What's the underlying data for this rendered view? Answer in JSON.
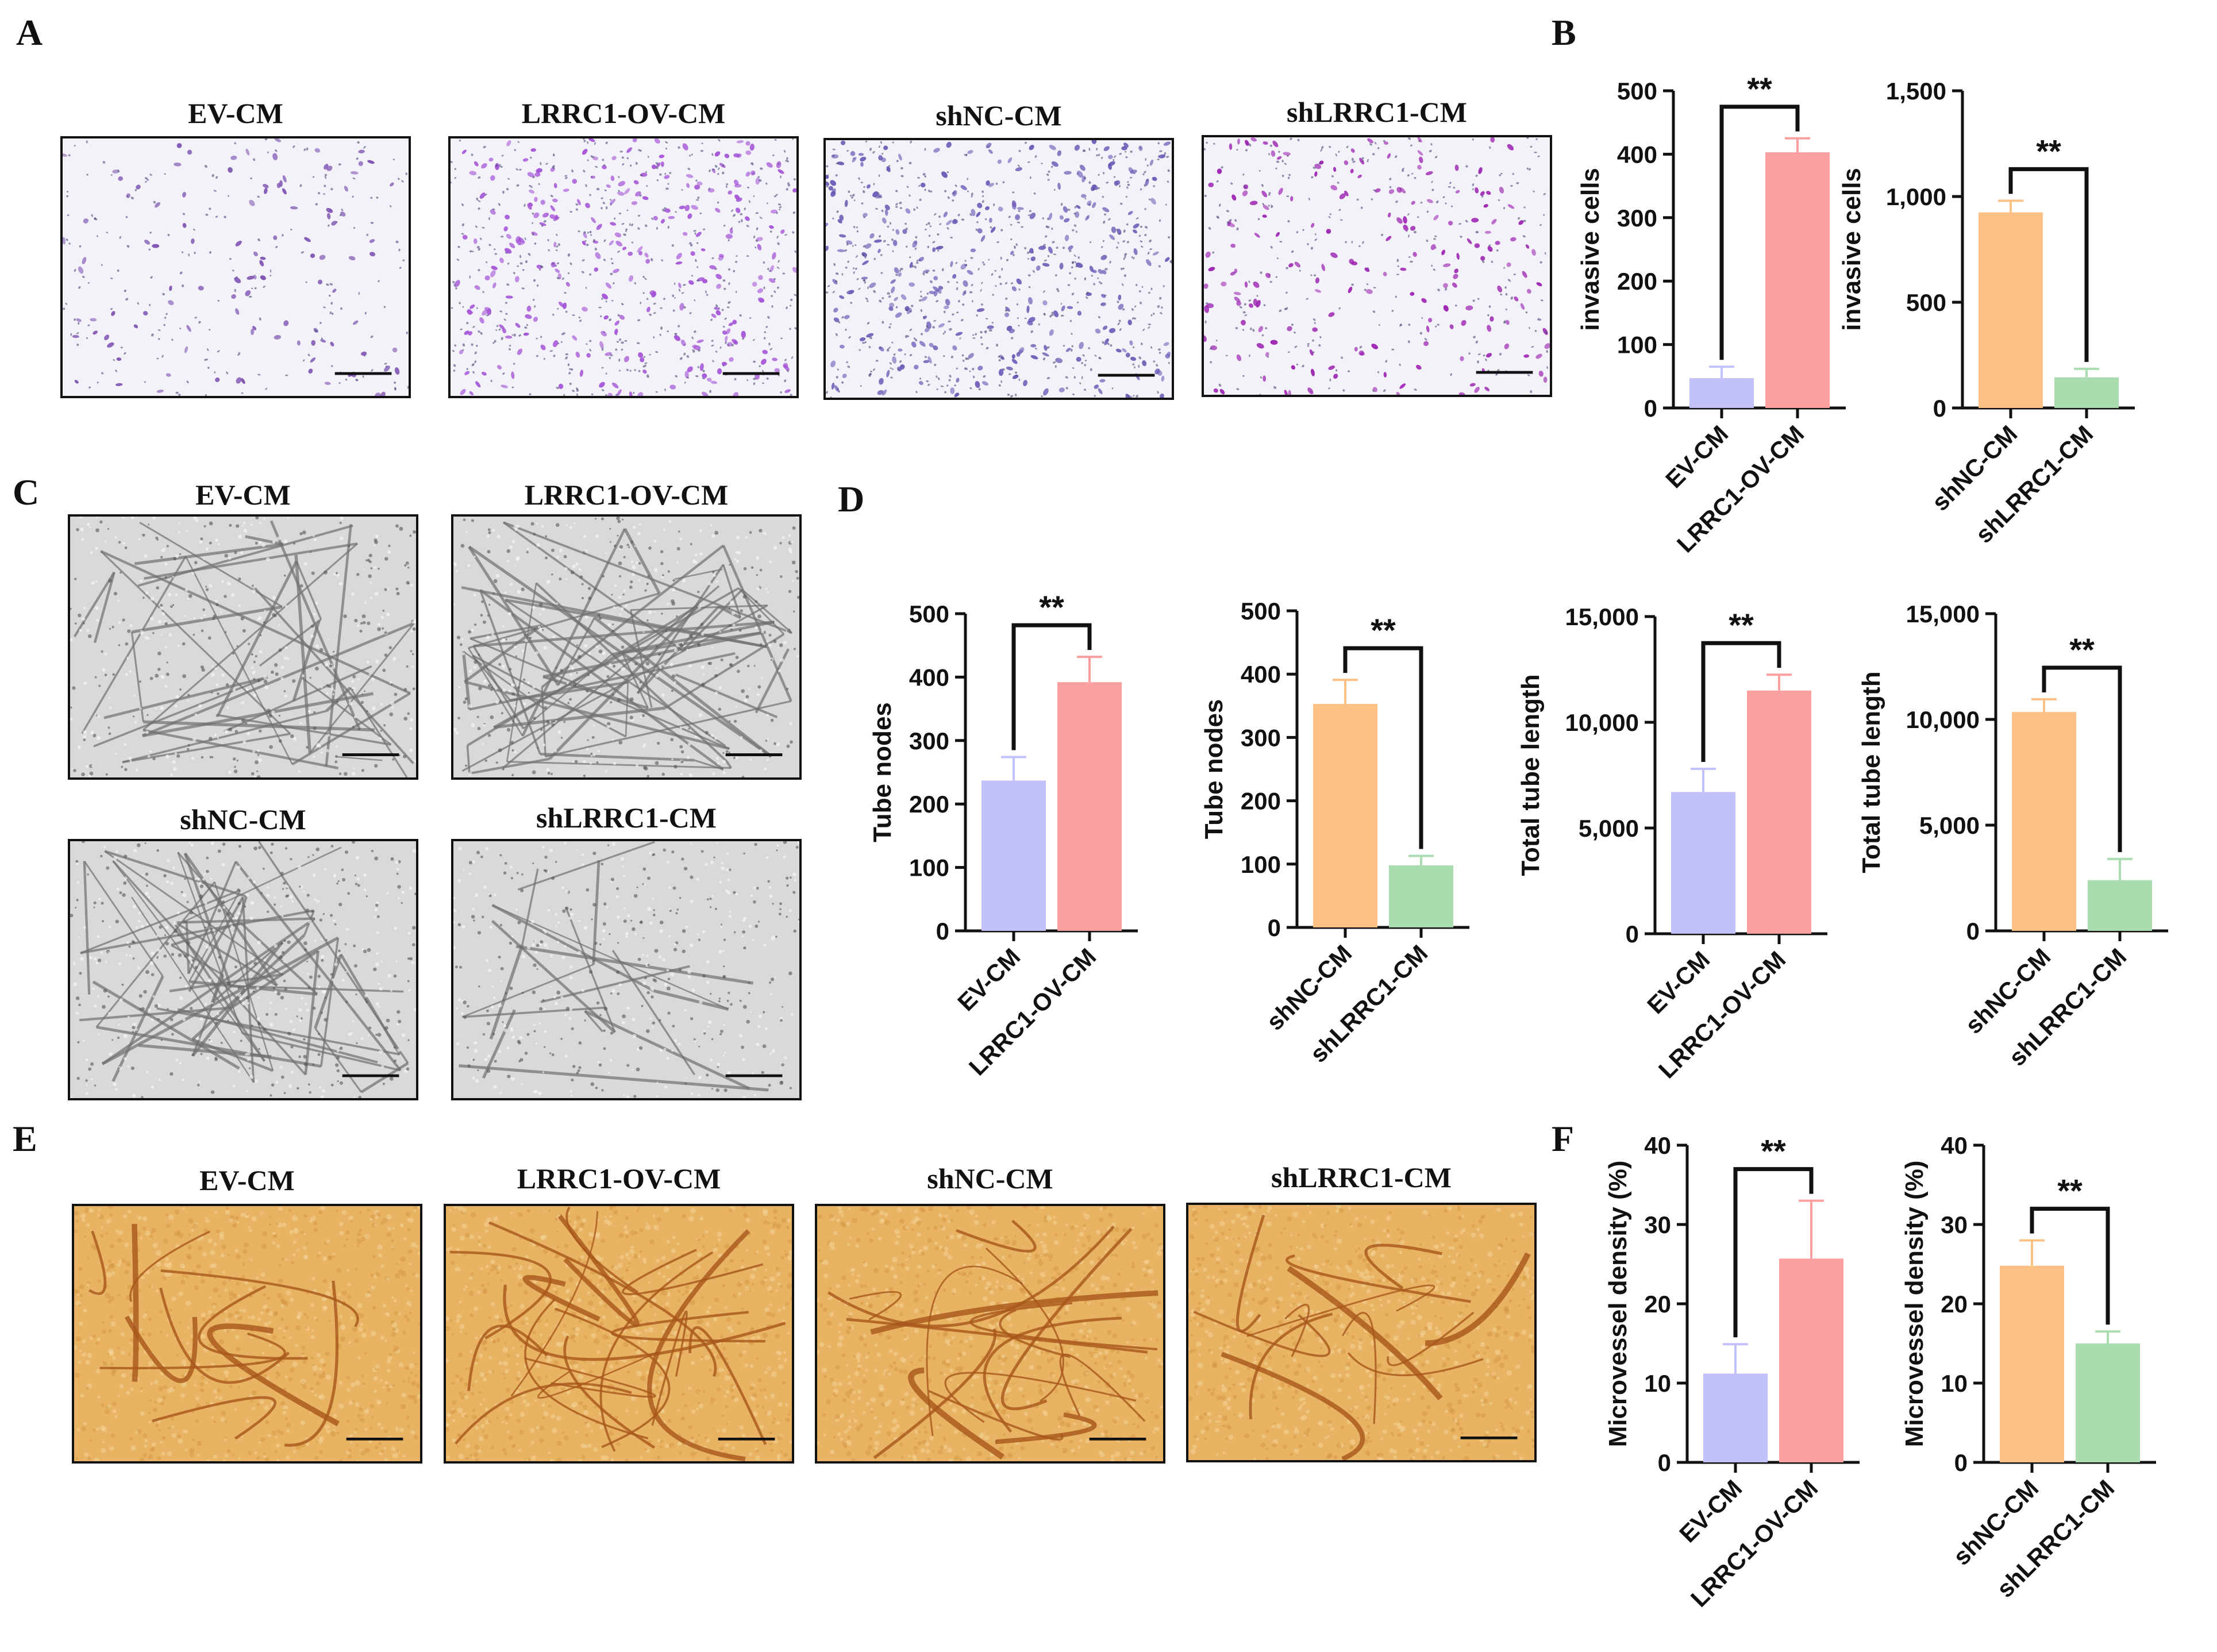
{
  "panels": {
    "A": {
      "letter": "A",
      "images": [
        {
          "title": "EV-CM",
          "kind": "transwell",
          "density": 0.35,
          "tint": "#7b4fb0"
        },
        {
          "title": "LRRC1-OV-CM",
          "kind": "transwell",
          "density": 0.9,
          "tint": "#a352d6"
        },
        {
          "title": "shNC-CM",
          "kind": "transwell",
          "density": 1.0,
          "tint": "#6a58b5"
        },
        {
          "title": "shLRRC1-CM",
          "kind": "transwell",
          "density": 0.55,
          "tint": "#9a1fb0"
        }
      ]
    },
    "B": {
      "letter": "B"
    },
    "C": {
      "letter": "C",
      "images": [
        {
          "title": "EV-CM",
          "kind": "tube",
          "density": 0.6
        },
        {
          "title": "LRRC1-OV-CM",
          "kind": "tube",
          "density": 1.0
        },
        {
          "title": "shNC-CM",
          "kind": "tube",
          "density": 0.8
        },
        {
          "title": "shLRRC1-CM",
          "kind": "tube",
          "density": 0.25
        }
      ]
    },
    "D": {
      "letter": "D"
    },
    "E": {
      "letter": "E",
      "images": [
        {
          "title": "EV-CM",
          "kind": "cam",
          "density": 0.35
        },
        {
          "title": "LRRC1-OV-CM",
          "kind": "cam",
          "density": 1.0
        },
        {
          "title": "shNC-CM",
          "kind": "cam",
          "density": 0.75
        },
        {
          "title": "shLRRC1-CM",
          "kind": "cam",
          "density": 0.5
        }
      ]
    },
    "F": {
      "letter": "F"
    }
  },
  "colors": {
    "EV-CM": "#c3c1fa",
    "LRRC1-OV-CM": "#fb9fa0",
    "shNC-CM": "#fdc085",
    "shLRRC1-CM": "#a9ddb0",
    "axis": "#111111"
  },
  "chart_data": [
    {
      "id": "B1",
      "type": "bar",
      "ylabel": "invasive cells",
      "categories": [
        "EV-CM",
        "LRRC1-OV-CM"
      ],
      "values": [
        47,
        403
      ],
      "errors": [
        18,
        22
      ],
      "ylim": [
        0,
        500
      ],
      "ticks": [
        "0",
        "100",
        "200",
        "300",
        "400",
        "500"
      ],
      "significance": "**"
    },
    {
      "id": "B2",
      "type": "bar",
      "ylabel": "invasive cells",
      "categories": [
        "shNC-CM",
        "shLRRC1-CM"
      ],
      "values": [
        925,
        145
      ],
      "errors": [
        55,
        40
      ],
      "ylim": [
        0,
        1500
      ],
      "ticks": [
        "0",
        "500",
        "1,000",
        "1,500"
      ],
      "significance": "**"
    },
    {
      "id": "D1",
      "type": "bar",
      "ylabel": "Tube nodes",
      "categories": [
        "EV-CM",
        "LRRC1-OV-CM"
      ],
      "values": [
        237,
        392
      ],
      "errors": [
        37,
        40
      ],
      "ylim": [
        0,
        500
      ],
      "ticks": [
        "0",
        "100",
        "200",
        "300",
        "400",
        "500"
      ],
      "significance": "**"
    },
    {
      "id": "D2",
      "type": "bar",
      "ylabel": "Tube nodes",
      "categories": [
        "shNC-CM",
        "shLRRC1-CM"
      ],
      "values": [
        353,
        98
      ],
      "errors": [
        38,
        15
      ],
      "ylim": [
        0,
        500
      ],
      "ticks": [
        "0",
        "100",
        "200",
        "300",
        "400",
        "500"
      ],
      "significance": "**"
    },
    {
      "id": "D3",
      "type": "bar",
      "ylabel": "Total tube length",
      "categories": [
        "EV-CM",
        "LRRC1-OV-CM"
      ],
      "values": [
        6700,
        11500
      ],
      "errors": [
        1100,
        750
      ],
      "ylim": [
        0,
        15000
      ],
      "ticks": [
        "0",
        "5,000",
        "10,000",
        "15,000"
      ],
      "significance": "**"
    },
    {
      "id": "D4",
      "type": "bar",
      "ylabel": "Total tube length",
      "categories": [
        "shNC-CM",
        "shLRRC1-CM"
      ],
      "values": [
        10350,
        2400
      ],
      "errors": [
        600,
        1000
      ],
      "ylim": [
        0,
        15000
      ],
      "ticks": [
        "0",
        "5,000",
        "10,000",
        "15,000"
      ],
      "significance": "**"
    },
    {
      "id": "F1",
      "type": "bar",
      "ylabel": "Microvessel density (%)",
      "categories": [
        "EV-CM",
        "LRRC1-OV-CM"
      ],
      "values": [
        11.2,
        25.7
      ],
      "errors": [
        3.7,
        7.3
      ],
      "ylim": [
        0,
        40
      ],
      "ticks": [
        "0",
        "10",
        "20",
        "30",
        "40"
      ],
      "significance": "**"
    },
    {
      "id": "F2",
      "type": "bar",
      "ylabel": "Microvessel density (%)",
      "categories": [
        "shNC-CM",
        "shLRRC1-CM"
      ],
      "values": [
        24.8,
        15.0
      ],
      "errors": [
        3.2,
        1.5
      ],
      "ylim": [
        0,
        40
      ],
      "ticks": [
        "0",
        "10",
        "20",
        "30",
        "40"
      ],
      "significance": "**"
    }
  ]
}
